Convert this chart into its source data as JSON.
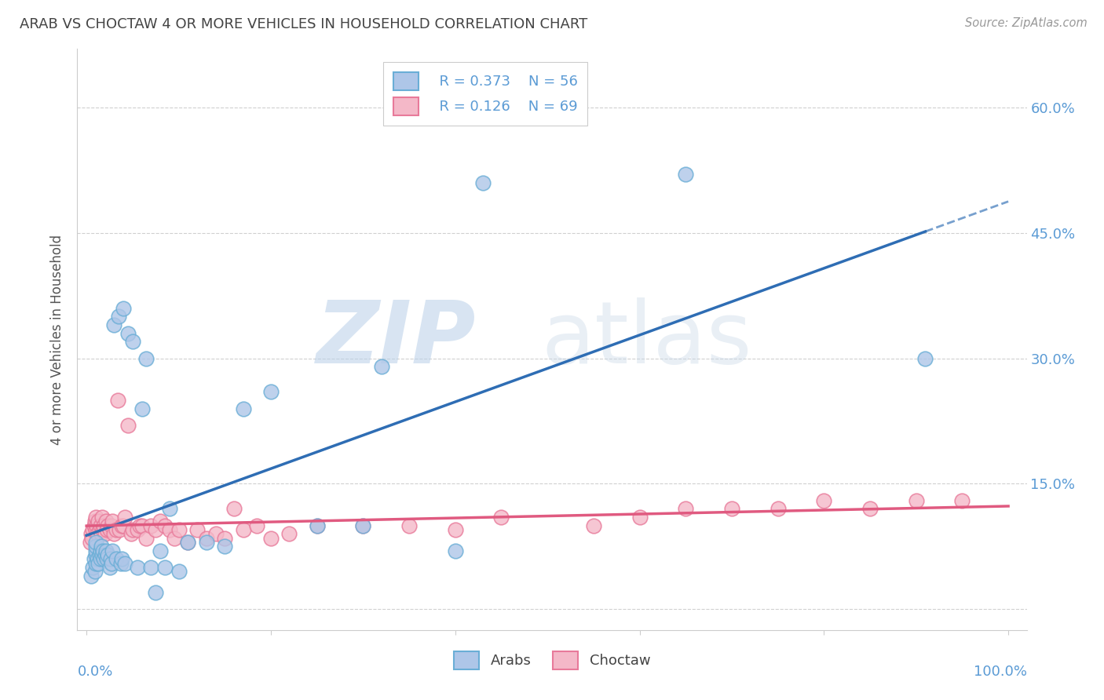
{
  "title": "ARAB VS CHOCTAW 4 OR MORE VEHICLES IN HOUSEHOLD CORRELATION CHART",
  "source": "Source: ZipAtlas.com",
  "ylabel": "4 or more Vehicles in Household",
  "watermark_zip": "ZIP",
  "watermark_atlas": "atlas",
  "legend": {
    "arab_R": "0.373",
    "arab_N": "56",
    "choctaw_R": "0.126",
    "choctaw_N": "69"
  },
  "arab_color": "#aec6e8",
  "arab_edge": "#6aaed6",
  "choctaw_color": "#f4b8c8",
  "choctaw_edge": "#e87a9a",
  "arab_line_color": "#2e6db4",
  "choctaw_line_color": "#e05a80",
  "title_color": "#444444",
  "axis_label_color": "#5b9bd5",
  "background_color": "#ffffff",
  "grid_color": "#d0d0d0",
  "xlim": [
    -0.01,
    1.02
  ],
  "ylim": [
    -0.025,
    0.67
  ],
  "yticks": [
    0.0,
    0.15,
    0.3,
    0.45,
    0.6
  ],
  "ytick_labels": [
    "",
    "15.0%",
    "30.0%",
    "45.0%",
    "60.0%"
  ],
  "arab_x": [
    0.005,
    0.007,
    0.008,
    0.009,
    0.01,
    0.01,
    0.01,
    0.01,
    0.01,
    0.012,
    0.013,
    0.014,
    0.015,
    0.015,
    0.016,
    0.017,
    0.018,
    0.019,
    0.02,
    0.021,
    0.022,
    0.023,
    0.025,
    0.026,
    0.027,
    0.028,
    0.03,
    0.032,
    0.035,
    0.037,
    0.038,
    0.04,
    0.042,
    0.045,
    0.05,
    0.055,
    0.06,
    0.065,
    0.07,
    0.075,
    0.08,
    0.085,
    0.09,
    0.1,
    0.11,
    0.13,
    0.15,
    0.17,
    0.2,
    0.25,
    0.3,
    0.32,
    0.4,
    0.43,
    0.65,
    0.91
  ],
  "arab_y": [
    0.04,
    0.05,
    0.06,
    0.045,
    0.055,
    0.065,
    0.07,
    0.075,
    0.08,
    0.06,
    0.055,
    0.065,
    0.06,
    0.07,
    0.075,
    0.065,
    0.07,
    0.06,
    0.065,
    0.07,
    0.06,
    0.065,
    0.05,
    0.06,
    0.055,
    0.07,
    0.34,
    0.06,
    0.35,
    0.055,
    0.06,
    0.36,
    0.055,
    0.33,
    0.32,
    0.05,
    0.24,
    0.3,
    0.05,
    0.02,
    0.07,
    0.05,
    0.12,
    0.045,
    0.08,
    0.08,
    0.075,
    0.24,
    0.26,
    0.1,
    0.1,
    0.29,
    0.07,
    0.51,
    0.52,
    0.3
  ],
  "choctaw_x": [
    0.004,
    0.005,
    0.006,
    0.007,
    0.008,
    0.009,
    0.01,
    0.01,
    0.011,
    0.012,
    0.013,
    0.014,
    0.015,
    0.016,
    0.017,
    0.018,
    0.019,
    0.02,
    0.021,
    0.022,
    0.023,
    0.025,
    0.027,
    0.028,
    0.03,
    0.032,
    0.034,
    0.036,
    0.038,
    0.04,
    0.042,
    0.045,
    0.048,
    0.05,
    0.055,
    0.058,
    0.06,
    0.065,
    0.07,
    0.075,
    0.08,
    0.085,
    0.09,
    0.095,
    0.1,
    0.11,
    0.12,
    0.13,
    0.14,
    0.15,
    0.16,
    0.17,
    0.185,
    0.2,
    0.22,
    0.25,
    0.3,
    0.35,
    0.4,
    0.45,
    0.55,
    0.6,
    0.65,
    0.7,
    0.75,
    0.8,
    0.85,
    0.9,
    0.95
  ],
  "choctaw_y": [
    0.08,
    0.09,
    0.085,
    0.095,
    0.1,
    0.105,
    0.095,
    0.11,
    0.1,
    0.09,
    0.105,
    0.095,
    0.1,
    0.09,
    0.11,
    0.095,
    0.1,
    0.09,
    0.105,
    0.095,
    0.1,
    0.095,
    0.1,
    0.105,
    0.09,
    0.095,
    0.25,
    0.095,
    0.1,
    0.1,
    0.11,
    0.22,
    0.09,
    0.095,
    0.095,
    0.1,
    0.1,
    0.085,
    0.1,
    0.095,
    0.105,
    0.1,
    0.095,
    0.085,
    0.095,
    0.08,
    0.095,
    0.085,
    0.09,
    0.085,
    0.12,
    0.095,
    0.1,
    0.085,
    0.09,
    0.1,
    0.1,
    0.1,
    0.095,
    0.11,
    0.1,
    0.11,
    0.12,
    0.12,
    0.12,
    0.13,
    0.12,
    0.13,
    0.13
  ]
}
